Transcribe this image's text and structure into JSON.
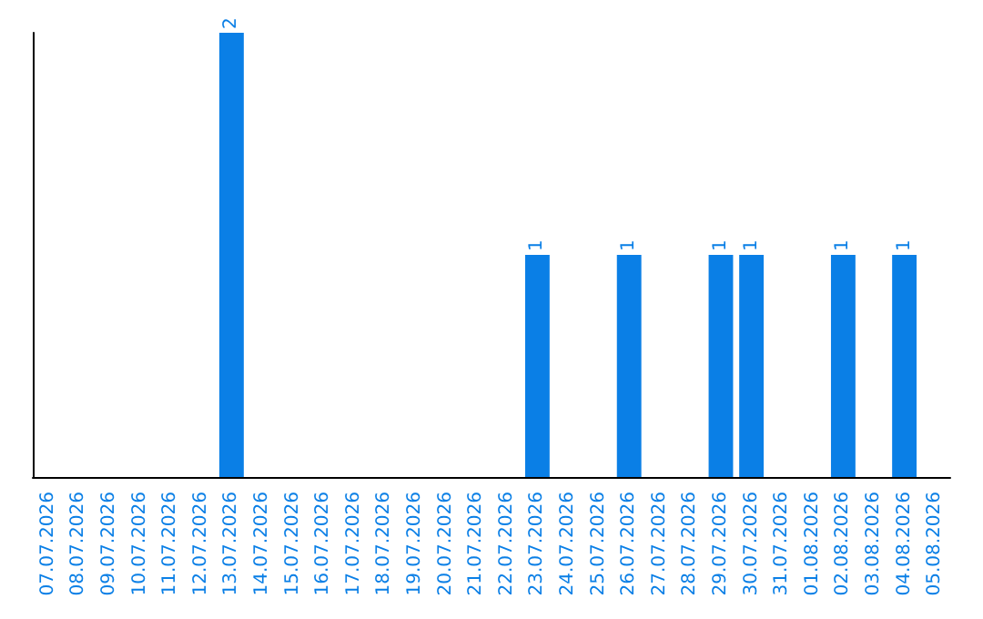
{
  "chart_data": {
    "type": "bar",
    "categories": [
      "07.07.2026",
      "08.07.2026",
      "09.07.2026",
      "10.07.2026",
      "11.07.2026",
      "12.07.2026",
      "13.07.2026",
      "14.07.2026",
      "15.07.2026",
      "16.07.2026",
      "17.07.2026",
      "18.07.2026",
      "19.07.2026",
      "20.07.2026",
      "21.07.2026",
      "22.07.2026",
      "23.07.2026",
      "24.07.2026",
      "25.07.2026",
      "26.07.2026",
      "27.07.2026",
      "28.07.2026",
      "29.07.2026",
      "30.07.2026",
      "31.07.2026",
      "01.08.2026",
      "02.08.2026",
      "03.08.2026",
      "04.08.2026",
      "05.08.2026"
    ],
    "values": [
      null,
      null,
      null,
      null,
      null,
      null,
      2,
      null,
      null,
      null,
      null,
      null,
      null,
      null,
      null,
      null,
      1,
      null,
      null,
      1,
      null,
      null,
      1,
      1,
      null,
      null,
      1,
      null,
      1,
      null
    ],
    "color": "#0a7fe6",
    "data_labels": true,
    "tick_labels": "x"
  }
}
